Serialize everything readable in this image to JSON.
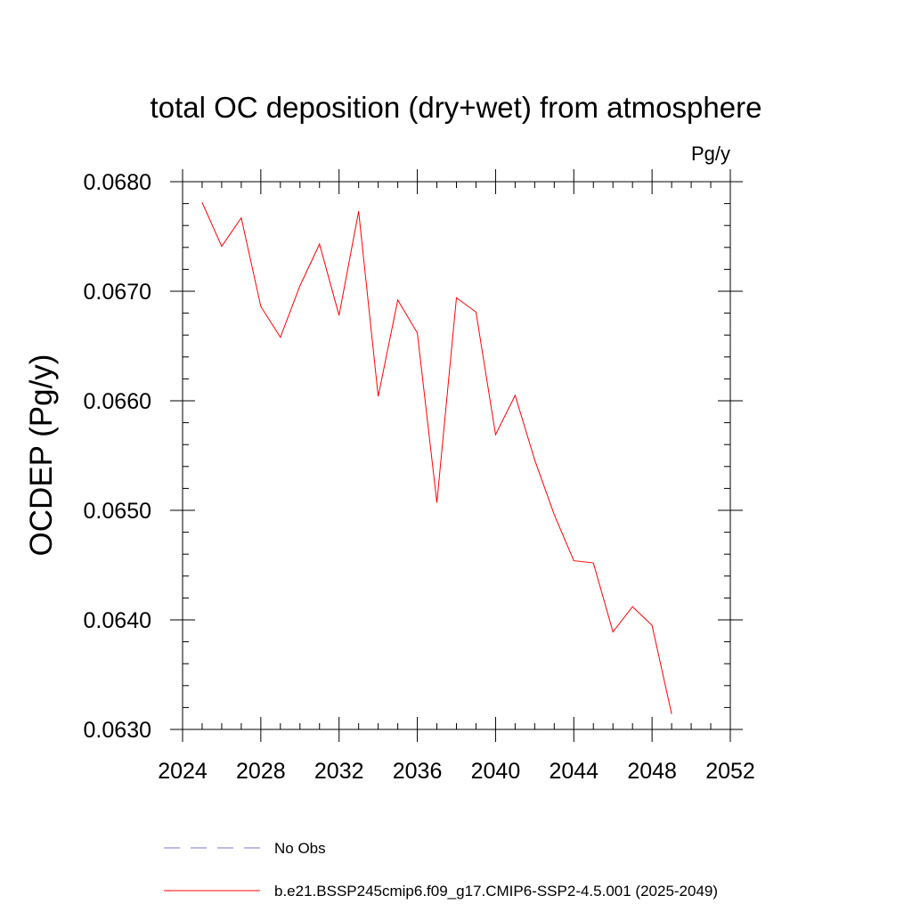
{
  "chart_data": {
    "type": "line",
    "title": "total OC deposition (dry+wet) from atmosphere",
    "units_label": "Pg/y",
    "ylabel": "OCDEP  (Pg/y)",
    "xlabel": "",
    "xlim": [
      2024,
      2052
    ],
    "ylim": [
      0.063,
      0.068
    ],
    "x_ticks": [
      2024,
      2028,
      2032,
      2036,
      2040,
      2044,
      2048,
      2052
    ],
    "x_tick_labels": [
      "2024",
      "2028",
      "2032",
      "2036",
      "2040",
      "2044",
      "2048",
      "2052"
    ],
    "y_ticks": [
      0.063,
      0.064,
      0.065,
      0.066,
      0.067,
      0.068
    ],
    "y_tick_labels": [
      "0.0630",
      "0.0640",
      "0.0650",
      "0.0660",
      "0.0670",
      "0.0680"
    ],
    "x_minor_step": 1,
    "y_minor_step": 0.0002,
    "grid": false,
    "legend_position": "bottom",
    "series": [
      {
        "name": "b.e21.BSSP245cmip6.f09_g17.CMIP6-SSP2-4.5.001 (2025-2049)",
        "color": "#ff0000",
        "style": "solid",
        "x": [
          2025,
          2026,
          2027,
          2028,
          2029,
          2030,
          2031,
          2032,
          2033,
          2034,
          2035,
          2036,
          2037,
          2038,
          2039,
          2040,
          2041,
          2042,
          2043,
          2044,
          2045,
          2046,
          2047,
          2048,
          2049
        ],
        "y": [
          0.06781,
          0.06741,
          0.06767,
          0.06686,
          0.06658,
          0.06705,
          0.06743,
          0.06678,
          0.06773,
          0.06604,
          0.06692,
          0.06662,
          0.06507,
          0.06694,
          0.06681,
          0.06569,
          0.06605,
          0.06546,
          0.06496,
          0.06454,
          0.06452,
          0.06389,
          0.06412,
          0.06395,
          0.06314
        ]
      }
    ],
    "legend": [
      {
        "label": "No Obs",
        "color": "#7777cc",
        "style": "dashed"
      },
      {
        "label": "b.e21.BSSP245cmip6.f09_g17.CMIP6-SSP2-4.5.001 (2025-2049)",
        "color": "#ff0000",
        "style": "solid"
      }
    ]
  }
}
